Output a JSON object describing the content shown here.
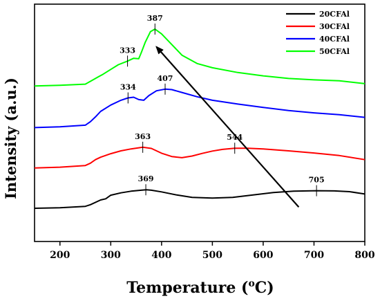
{
  "chart_data": {
    "type": "line",
    "xlabel": "Temperature (",
    "xlabel_sup": "o",
    "xlabel_unit": "C)",
    "ylabel": "Intensity (a.u.)",
    "xlim": [
      150,
      800
    ],
    "ylim": [
      0,
      100
    ],
    "x_ticks": [
      200,
      300,
      400,
      500,
      600,
      700,
      800
    ],
    "y_ticks_labeled": false,
    "legend_position": "top-right",
    "series": [
      {
        "name": "20CFAl",
        "color": "#000000",
        "points": [
          [
            150,
            14
          ],
          [
            200,
            14.2
          ],
          [
            250,
            14.8
          ],
          [
            260,
            15.5
          ],
          [
            280,
            17.5
          ],
          [
            290,
            18
          ],
          [
            300,
            19.5
          ],
          [
            320,
            20.5
          ],
          [
            340,
            21.2
          ],
          [
            360,
            21.6
          ],
          [
            370,
            21.8
          ],
          [
            380,
            21.6
          ],
          [
            400,
            20.9
          ],
          [
            430,
            19.6
          ],
          [
            460,
            18.6
          ],
          [
            500,
            18.3
          ],
          [
            540,
            18.6
          ],
          [
            580,
            19.6
          ],
          [
            620,
            20.6
          ],
          [
            660,
            21.2
          ],
          [
            705,
            21.4
          ],
          [
            740,
            21.3
          ],
          [
            770,
            21
          ],
          [
            800,
            20
          ]
        ]
      },
      {
        "name": "30CFAl",
        "color": "#ff0000",
        "points": [
          [
            150,
            31
          ],
          [
            200,
            31.3
          ],
          [
            250,
            32
          ],
          [
            260,
            33
          ],
          [
            270,
            34.5
          ],
          [
            280,
            35.5
          ],
          [
            300,
            37
          ],
          [
            320,
            38.2
          ],
          [
            340,
            39
          ],
          [
            363,
            39.7
          ],
          [
            380,
            39.2
          ],
          [
            400,
            37.2
          ],
          [
            420,
            35.8
          ],
          [
            440,
            35.3
          ],
          [
            460,
            36
          ],
          [
            480,
            37.1
          ],
          [
            500,
            38.1
          ],
          [
            520,
            38.8
          ],
          [
            544,
            39.3
          ],
          [
            570,
            39.3
          ],
          [
            600,
            39
          ],
          [
            650,
            38.2
          ],
          [
            700,
            37.3
          ],
          [
            750,
            36.2
          ],
          [
            800,
            34.5
          ]
        ]
      },
      {
        "name": "40CFAl",
        "color": "#0000ff",
        "points": [
          [
            150,
            48
          ],
          [
            200,
            48.3
          ],
          [
            250,
            49
          ],
          [
            260,
            50.5
          ],
          [
            270,
            52.5
          ],
          [
            280,
            54.8
          ],
          [
            300,
            57.5
          ],
          [
            320,
            59.5
          ],
          [
            334,
            60.5
          ],
          [
            345,
            60.8
          ],
          [
            355,
            59.8
          ],
          [
            365,
            59.5
          ],
          [
            375,
            61.5
          ],
          [
            390,
            63.5
          ],
          [
            407,
            64.2
          ],
          [
            420,
            64
          ],
          [
            440,
            62.8
          ],
          [
            470,
            61
          ],
          [
            500,
            59.5
          ],
          [
            550,
            57.9
          ],
          [
            600,
            56.5
          ],
          [
            650,
            55.2
          ],
          [
            700,
            54.2
          ],
          [
            750,
            53.4
          ],
          [
            800,
            52.3
          ]
        ]
      },
      {
        "name": "50CFAl",
        "color": "#00ff00",
        "points": [
          [
            150,
            65.5
          ],
          [
            200,
            65.8
          ],
          [
            250,
            66.3
          ],
          [
            260,
            67.5
          ],
          [
            275,
            69.3
          ],
          [
            285,
            70.5
          ],
          [
            300,
            72.5
          ],
          [
            315,
            74.5
          ],
          [
            333,
            76
          ],
          [
            345,
            77.2
          ],
          [
            355,
            77
          ],
          [
            360,
            79.5
          ],
          [
            368,
            84
          ],
          [
            378,
            88.4
          ],
          [
            387,
            89.5
          ],
          [
            400,
            87.5
          ],
          [
            420,
            83
          ],
          [
            440,
            78.5
          ],
          [
            470,
            75
          ],
          [
            500,
            73.2
          ],
          [
            550,
            71.2
          ],
          [
            600,
            69.8
          ],
          [
            650,
            68.7
          ],
          [
            700,
            68.1
          ],
          [
            750,
            67.7
          ],
          [
            800,
            66.5
          ]
        ]
      }
    ],
    "peaks": [
      {
        "label": "369",
        "x": 369,
        "y": 21.8
      },
      {
        "label": "705",
        "x": 705,
        "y": 21.4
      },
      {
        "label": "363",
        "x": 363,
        "y": 39.7
      },
      {
        "label": "544",
        "x": 544,
        "y": 39.3
      },
      {
        "label": "334",
        "x": 334,
        "y": 60.5
      },
      {
        "label": "407",
        "x": 407,
        "y": 64.2
      },
      {
        "label": "333",
        "x": 333,
        "y": 76
      },
      {
        "label": "387",
        "x": 387,
        "y": 89.5
      }
    ],
    "arrow": {
      "from": [
        670,
        14.5
      ],
      "to": [
        390,
        82
      ]
    }
  }
}
